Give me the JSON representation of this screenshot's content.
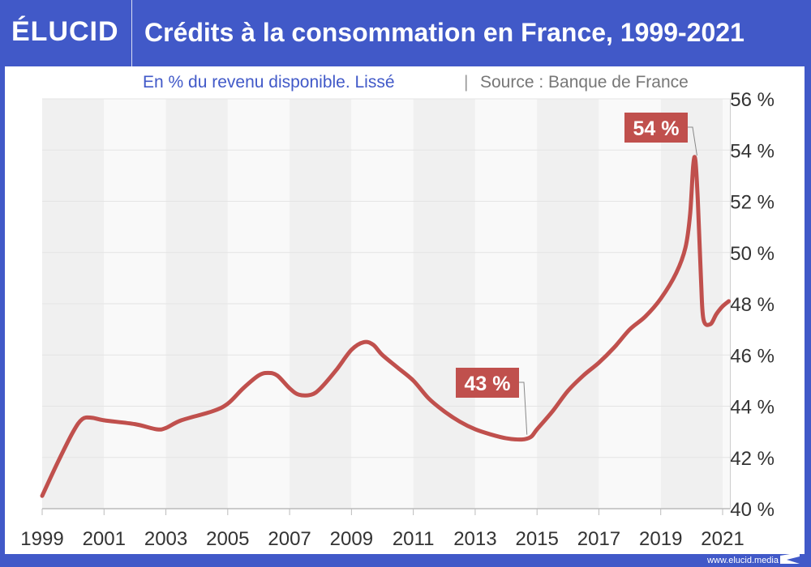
{
  "header": {
    "logo": "ÉLUCID",
    "title": "Crédits à la consommation en France, 1999-2021"
  },
  "subtitle": "En % du revenu disponible. Lissé",
  "separator": "|",
  "source": "Source : Banque de France",
  "footer": "www.elucid.media",
  "colors": {
    "brand": "#4159c8",
    "line": "#c0504d",
    "band_dark": "#f0f0f0",
    "band_light": "#f9f9f9"
  },
  "chart_data": {
    "type": "line",
    "title": "Crédits à la consommation en France, 1999-2021",
    "xlabel": "",
    "ylabel": "",
    "xlim": [
      1999,
      2021.25
    ],
    "ylim": [
      40,
      56
    ],
    "grid": true,
    "x_ticks": [
      "1999",
      "2001",
      "2003",
      "2005",
      "2007",
      "2009",
      "2011",
      "2013",
      "2015",
      "2017",
      "2019",
      "2021"
    ],
    "y_ticks": [
      "40 %",
      "42 %",
      "44 %",
      "46 %",
      "48 %",
      "50 %",
      "52 %",
      "54 %",
      "56 %"
    ],
    "x": [
      1999.0,
      1999.5,
      2000.0,
      2000.3,
      2000.6,
      2001.0,
      2002.0,
      2002.7,
      2003.0,
      2003.5,
      2004.5,
      2005.0,
      2005.5,
      2006.0,
      2006.3,
      2006.6,
      2007.0,
      2007.3,
      2007.7,
      2008.0,
      2008.5,
      2009.0,
      2009.4,
      2009.7,
      2010.0,
      2010.5,
      2011.0,
      2011.5,
      2012.0,
      2012.5,
      2013.0,
      2013.5,
      2014.0,
      2014.5,
      2014.8,
      2015.0,
      2015.5,
      2016.0,
      2016.5,
      2017.0,
      2017.5,
      2018.0,
      2018.5,
      2019.0,
      2019.5,
      2019.8,
      2019.95,
      2020.05,
      2020.12,
      2020.2,
      2020.3,
      2020.38,
      2020.6,
      2020.8,
      2021.0,
      2021.2
    ],
    "y": [
      40.5,
      41.8,
      43.0,
      43.5,
      43.55,
      43.45,
      43.3,
      43.1,
      43.15,
      43.45,
      43.8,
      44.1,
      44.7,
      45.2,
      45.3,
      45.2,
      44.7,
      44.45,
      44.45,
      44.7,
      45.4,
      46.2,
      46.5,
      46.4,
      46.0,
      45.5,
      45.0,
      44.3,
      43.8,
      43.4,
      43.1,
      42.9,
      42.75,
      42.7,
      42.8,
      43.1,
      43.8,
      44.6,
      45.2,
      45.7,
      46.3,
      47.0,
      47.5,
      48.2,
      49.2,
      50.2,
      51.5,
      53.4,
      53.6,
      52.0,
      49.0,
      47.4,
      47.2,
      47.6,
      47.9,
      48.1
    ],
    "annotations": [
      {
        "label": "54 %",
        "x": 2020.12,
        "y": 53.6
      },
      {
        "label": "43 %",
        "x": 2014.7,
        "y": 42.7
      }
    ]
  }
}
